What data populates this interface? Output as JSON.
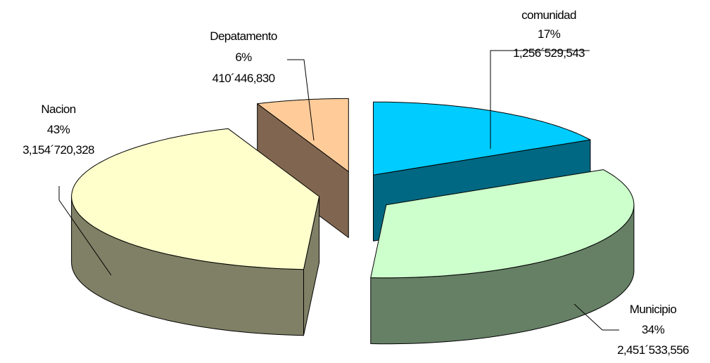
{
  "chart_data": {
    "type": "pie",
    "three_d": true,
    "exploded": true,
    "title": "",
    "legend": "none",
    "slices": [
      {
        "name": "comunidad",
        "percent": "17%",
        "value": "1,256´529,543",
        "fraction": 0.17,
        "top_color": "#00CCFF",
        "side_color": "#006882"
      },
      {
        "name": "Municipio",
        "percent": "34%",
        "value": "2,451´533,556",
        "fraction": 0.34,
        "top_color": "#CCFFCC",
        "side_color": "#668066"
      },
      {
        "name": "Nacion",
        "percent": "43%",
        "value": "3,154´720,328",
        "fraction": 0.43,
        "top_color": "#FFFFCC",
        "side_color": "#808066"
      },
      {
        "name": "Depatamento",
        "percent": "6%",
        "value": "410´446,830",
        "fraction": 0.06,
        "top_color": "#FFCC99",
        "side_color": "#806650"
      }
    ]
  }
}
